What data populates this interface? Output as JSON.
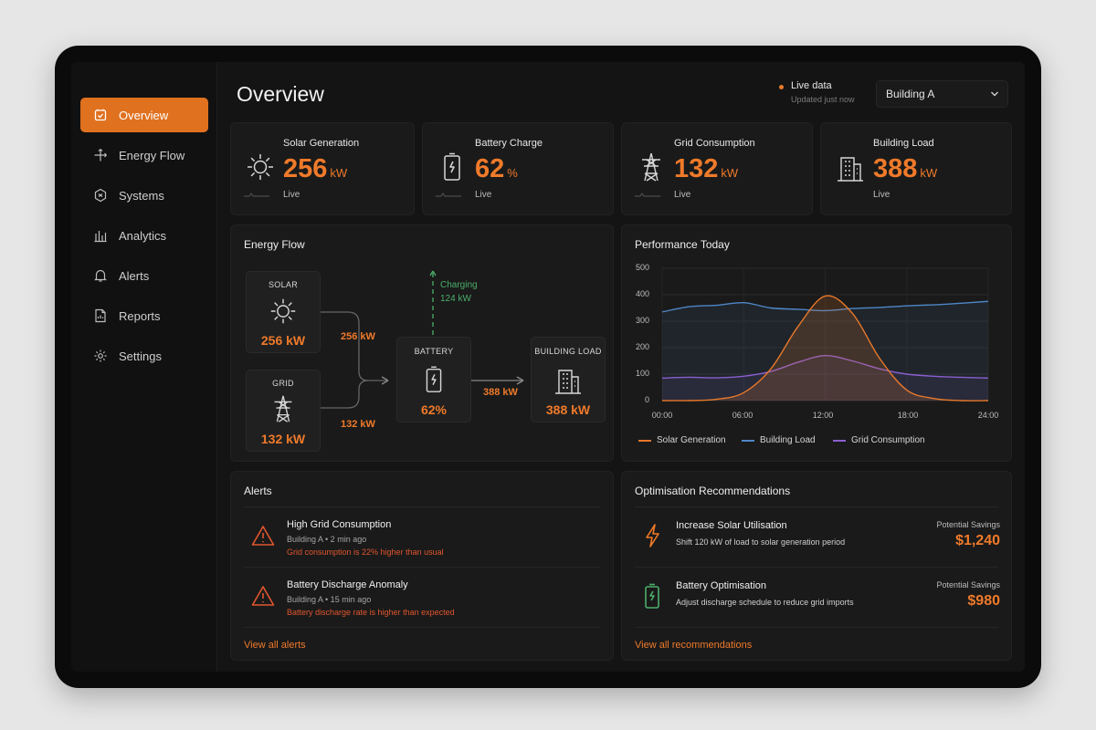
{
  "sidebar": {
    "items": [
      {
        "label": "Overview",
        "icon": "home-icon",
        "active": true
      },
      {
        "label": "Energy Flow",
        "icon": "flow-icon"
      },
      {
        "label": "Systems",
        "icon": "systems-icon"
      },
      {
        "label": "Analytics",
        "icon": "analytics-icon"
      },
      {
        "label": "Alerts",
        "icon": "bell-icon"
      },
      {
        "label": "Reports",
        "icon": "report-icon"
      },
      {
        "label": "Settings",
        "icon": "gear-icon"
      }
    ]
  },
  "header": {
    "title": "Overview",
    "live_label": "Live data",
    "live_sub": "Updated just now",
    "building_select": "Building A"
  },
  "kpis": [
    {
      "label": "Solar Generation",
      "value": "256",
      "unit": "kW",
      "sub": "Live",
      "icon": "sun-icon"
    },
    {
      "label": "Battery Charge",
      "value": "62",
      "unit": "%",
      "sub": "Live",
      "icon": "battery-icon"
    },
    {
      "label": "Grid Consumption",
      "value": "132",
      "unit": "kW",
      "sub": "Live",
      "icon": "pylon-icon"
    },
    {
      "label": "Building Load",
      "value": "388",
      "unit": "kW",
      "sub": "Live",
      "icon": "building-icon"
    }
  ],
  "energy_flow": {
    "title": "Energy Flow",
    "solar": {
      "label": "SOLAR",
      "value": "256 kW"
    },
    "grid": {
      "label": "GRID",
      "value": "132 kW"
    },
    "battery": {
      "label": "BATTERY",
      "value": "62%"
    },
    "building": {
      "label": "BUILDING LOAD",
      "value": "388 kW"
    },
    "solar_flow": "256 kW",
    "grid_flow": "132 kW",
    "load_flow": "388 kW",
    "charging_label": "Charging",
    "charging_value": "124 kW"
  },
  "performance": {
    "title": "Performance Today",
    "y_ticks": [
      "500",
      "400",
      "300",
      "200",
      "100",
      "0"
    ],
    "x_ticks": [
      "00:00",
      "06:00",
      "12:00",
      "18:00",
      "24:00"
    ]
  },
  "chart_data": {
    "type": "line",
    "title": "Performance Today",
    "x": [
      "00:00",
      "02:00",
      "04:00",
      "06:00",
      "08:00",
      "10:00",
      "12:00",
      "14:00",
      "16:00",
      "18:00",
      "20:00",
      "22:00",
      "24:00"
    ],
    "xlabel": "",
    "ylabel": "",
    "ylim": [
      0,
      500
    ],
    "grid": true,
    "legend": "bottom",
    "series": [
      {
        "name": "Solar Generation",
        "color": "#e8782a",
        "values": [
          0,
          0,
          5,
          30,
          120,
          280,
          395,
          330,
          160,
          40,
          8,
          0,
          0
        ]
      },
      {
        "name": "Building Load",
        "color": "#4f86c6",
        "values": [
          335,
          355,
          360,
          370,
          350,
          345,
          340,
          348,
          352,
          358,
          362,
          368,
          375
        ]
      },
      {
        "name": "Grid Consumption",
        "color": "#8b5fd0",
        "values": [
          85,
          88,
          86,
          92,
          110,
          145,
          170,
          150,
          120,
          100,
          92,
          88,
          85
        ]
      }
    ]
  },
  "alerts": {
    "title": "Alerts",
    "items": [
      {
        "title": "High Grid Consumption",
        "meta": "Building A • 2 min ago",
        "desc": "Grid consumption is 22% higher than usual"
      },
      {
        "title": "Battery Discharge Anomaly",
        "meta": "Building A • 15 min ago",
        "desc": "Battery discharge rate is higher than expected"
      }
    ],
    "view_all": "View all alerts"
  },
  "recommendations": {
    "title": "Optimisation Recommendations",
    "items": [
      {
        "title": "Increase Solar Utilisation",
        "desc": "Shift 120 kW of load to solar generation period",
        "savings_label": "Potential Savings",
        "savings": "$1,240",
        "icon": "bolt-icon"
      },
      {
        "title": "Battery Optimisation",
        "desc": "Adjust discharge schedule to reduce grid imports",
        "savings_label": "Potential Savings",
        "savings": "$980",
        "icon": "battery-green-icon"
      }
    ],
    "view_all": "View all recommendations"
  },
  "colors": {
    "accent": "#ef7a2a",
    "warning": "#e0562e",
    "success": "#4caf6a",
    "load": "#4f86c6",
    "grid": "#8b5fd0"
  }
}
